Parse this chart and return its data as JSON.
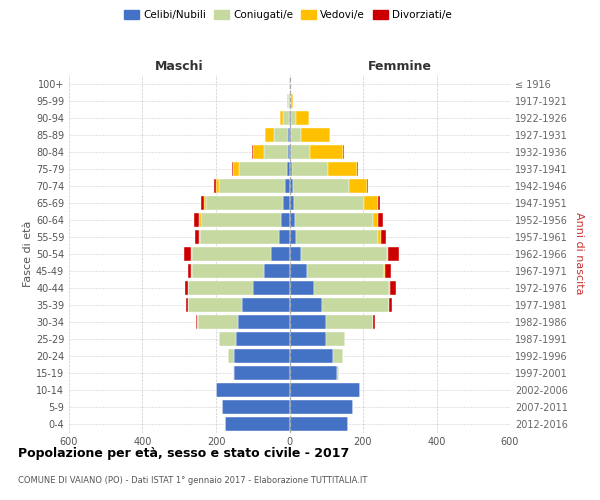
{
  "age_groups": [
    "0-4",
    "5-9",
    "10-14",
    "15-19",
    "20-24",
    "25-29",
    "30-34",
    "35-39",
    "40-44",
    "45-49",
    "50-54",
    "55-59",
    "60-64",
    "65-69",
    "70-74",
    "75-79",
    "80-84",
    "85-89",
    "90-94",
    "95-99",
    "100+"
  ],
  "birth_years": [
    "2012-2016",
    "2007-2011",
    "2002-2006",
    "1997-2001",
    "1992-1996",
    "1987-1991",
    "1982-1986",
    "1977-1981",
    "1972-1976",
    "1967-1971",
    "1962-1966",
    "1957-1961",
    "1952-1956",
    "1947-1951",
    "1942-1946",
    "1937-1941",
    "1932-1936",
    "1927-1931",
    "1922-1926",
    "1917-1921",
    "≤ 1916"
  ],
  "male": {
    "celibi": [
      175,
      185,
      200,
      150,
      150,
      145,
      140,
      130,
      100,
      70,
      50,
      28,
      22,
      18,
      12,
      8,
      5,
      3,
      2,
      1,
      1
    ],
    "coniugati": [
      0,
      0,
      0,
      4,
      18,
      48,
      110,
      145,
      175,
      195,
      215,
      215,
      220,
      210,
      180,
      130,
      65,
      38,
      15,
      3,
      1
    ],
    "vedovi": [
      0,
      0,
      0,
      0,
      0,
      0,
      1,
      1,
      2,
      2,
      3,
      3,
      3,
      5,
      8,
      15,
      28,
      25,
      10,
      2,
      0
    ],
    "divorziati": [
      0,
      0,
      0,
      0,
      0,
      0,
      3,
      5,
      8,
      10,
      20,
      12,
      15,
      8,
      5,
      3,
      3,
      2,
      0,
      0,
      0
    ]
  },
  "female": {
    "nubili": [
      158,
      172,
      192,
      130,
      118,
      98,
      98,
      88,
      68,
      48,
      32,
      18,
      14,
      12,
      10,
      8,
      5,
      3,
      3,
      0,
      0
    ],
    "coniugate": [
      0,
      0,
      0,
      4,
      28,
      52,
      128,
      182,
      202,
      208,
      232,
      222,
      212,
      192,
      152,
      98,
      52,
      28,
      15,
      5,
      1
    ],
    "vedove": [
      0,
      0,
      0,
      0,
      0,
      0,
      1,
      2,
      3,
      5,
      5,
      9,
      14,
      38,
      48,
      78,
      88,
      78,
      35,
      4,
      0
    ],
    "divorziate": [
      0,
      0,
      0,
      0,
      0,
      0,
      5,
      8,
      18,
      14,
      28,
      14,
      14,
      5,
      3,
      3,
      2,
      2,
      0,
      0,
      0
    ]
  },
  "colors": {
    "celibi_nubili": "#4472c4",
    "coniugati": "#c5d9a0",
    "vedovi": "#ffc000",
    "divorziati": "#cc0000"
  },
  "title": "Popolazione per età, sesso e stato civile - 2017",
  "subtitle": "COMUNE DI VAIANO (PO) - Dati ISTAT 1° gennaio 2017 - Elaborazione TUTTITALIA.IT",
  "xlabel_left": "Maschi",
  "xlabel_right": "Femmine",
  "ylabel_left": "Fasce di età",
  "ylabel_right": "Anni di nascita",
  "xlim": 600,
  "background_color": "#ffffff",
  "grid_color": "#cccccc",
  "axis_color": "#888888"
}
